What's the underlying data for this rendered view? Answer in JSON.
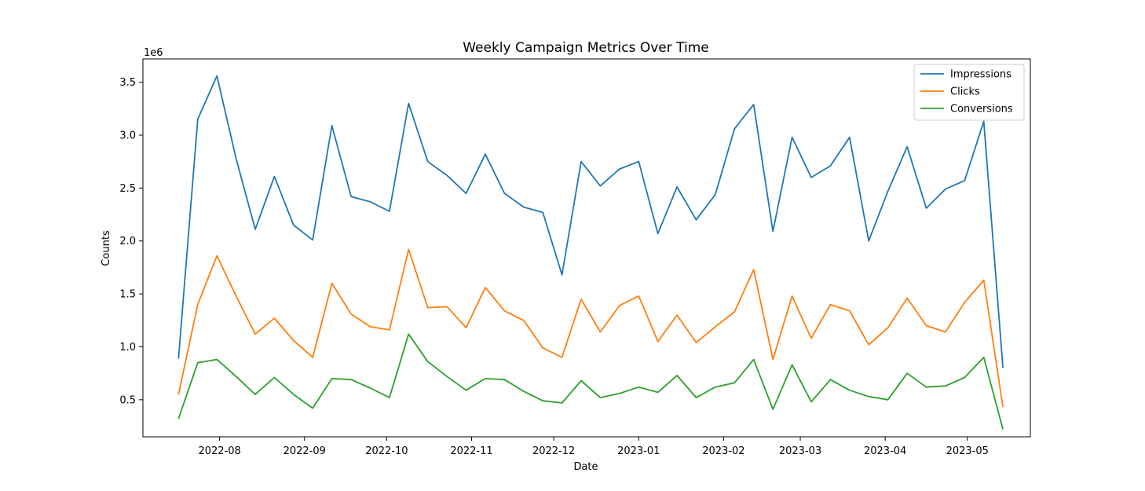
{
  "chart_data": {
    "type": "line",
    "title": "Weekly Campaign Metrics Over Time",
    "xlabel": "Date",
    "ylabel": "Counts",
    "y_offset_label": "1e6",
    "y_scale": 1000000,
    "ylim": [
      0.15,
      3.72
    ],
    "xlim": [
      "2022-07-04",
      "2023-05-24"
    ],
    "grid": false,
    "legend_position": "upper right",
    "x_ticks": [
      {
        "date": "2022-08-01",
        "label": "2022-08"
      },
      {
        "date": "2022-09-01",
        "label": "2022-09"
      },
      {
        "date": "2022-10-01",
        "label": "2022-10"
      },
      {
        "date": "2022-11-01",
        "label": "2022-11"
      },
      {
        "date": "2022-12-01",
        "label": "2022-12"
      },
      {
        "date": "2023-01-01",
        "label": "2023-01"
      },
      {
        "date": "2023-02-01",
        "label": "2023-02"
      },
      {
        "date": "2023-03-01",
        "label": "2023-03"
      },
      {
        "date": "2023-04-01",
        "label": "2023-04"
      },
      {
        "date": "2023-05-01",
        "label": "2023-05"
      }
    ],
    "y_ticks": [
      {
        "value": 0.5,
        "label": "0.5"
      },
      {
        "value": 1.0,
        "label": "1.0"
      },
      {
        "value": 1.5,
        "label": "1.5"
      },
      {
        "value": 2.0,
        "label": "2.0"
      },
      {
        "value": 2.5,
        "label": "2.5"
      },
      {
        "value": 3.0,
        "label": "3.0"
      },
      {
        "value": 3.5,
        "label": "3.5"
      }
    ],
    "x": [
      "2022-07-17",
      "2022-07-24",
      "2022-07-31",
      "2022-08-07",
      "2022-08-14",
      "2022-08-21",
      "2022-08-28",
      "2022-09-04",
      "2022-09-11",
      "2022-09-18",
      "2022-09-25",
      "2022-10-02",
      "2022-10-09",
      "2022-10-16",
      "2022-10-23",
      "2022-10-30",
      "2022-11-06",
      "2022-11-13",
      "2022-11-20",
      "2022-11-27",
      "2022-12-04",
      "2022-12-11",
      "2022-12-18",
      "2022-12-25",
      "2023-01-01",
      "2023-01-08",
      "2023-01-15",
      "2023-01-22",
      "2023-01-29",
      "2023-02-05",
      "2023-02-12",
      "2023-02-19",
      "2023-02-26",
      "2023-03-05",
      "2023-03-12",
      "2023-03-19",
      "2023-03-26",
      "2023-04-02",
      "2023-04-09",
      "2023-04-16",
      "2023-04-23",
      "2023-04-30",
      "2023-05-07",
      "2023-05-14"
    ],
    "series": [
      {
        "name": "Impressions",
        "color": "#1f77b4",
        "values": [
          0.89,
          3.15,
          3.56,
          2.78,
          2.11,
          2.61,
          2.15,
          2.01,
          3.09,
          2.42,
          2.37,
          2.28,
          3.3,
          2.75,
          2.62,
          2.45,
          2.82,
          2.45,
          2.32,
          2.27,
          1.68,
          2.75,
          2.52,
          2.68,
          2.75,
          2.07,
          2.51,
          2.2,
          2.44,
          3.06,
          3.29,
          2.09,
          2.98,
          2.6,
          2.71,
          2.98,
          2.0,
          2.47,
          2.89,
          2.31,
          2.49,
          2.57,
          3.13,
          0.8
        ]
      },
      {
        "name": "Clicks",
        "color": "#ff7f0e",
        "values": [
          0.55,
          1.4,
          1.86,
          1.48,
          1.12,
          1.27,
          1.06,
          0.9,
          1.6,
          1.31,
          1.19,
          1.16,
          1.92,
          1.37,
          1.38,
          1.18,
          1.56,
          1.34,
          1.25,
          0.99,
          0.9,
          1.45,
          1.14,
          1.39,
          1.48,
          1.05,
          1.3,
          1.04,
          1.19,
          1.33,
          1.73,
          0.88,
          1.48,
          1.08,
          1.4,
          1.34,
          1.02,
          1.18,
          1.46,
          1.2,
          1.14,
          1.42,
          1.63,
          0.43
        ]
      },
      {
        "name": "Conversions",
        "color": "#2ca02c",
        "values": [
          0.32,
          0.85,
          0.88,
          0.72,
          0.55,
          0.71,
          0.55,
          0.42,
          0.7,
          0.69,
          0.61,
          0.52,
          1.12,
          0.86,
          0.72,
          0.59,
          0.7,
          0.69,
          0.58,
          0.49,
          0.47,
          0.68,
          0.52,
          0.56,
          0.62,
          0.57,
          0.73,
          0.52,
          0.62,
          0.66,
          0.88,
          0.41,
          0.83,
          0.48,
          0.69,
          0.59,
          0.53,
          0.5,
          0.75,
          0.62,
          0.63,
          0.71,
          0.9,
          0.22
        ]
      }
    ]
  }
}
